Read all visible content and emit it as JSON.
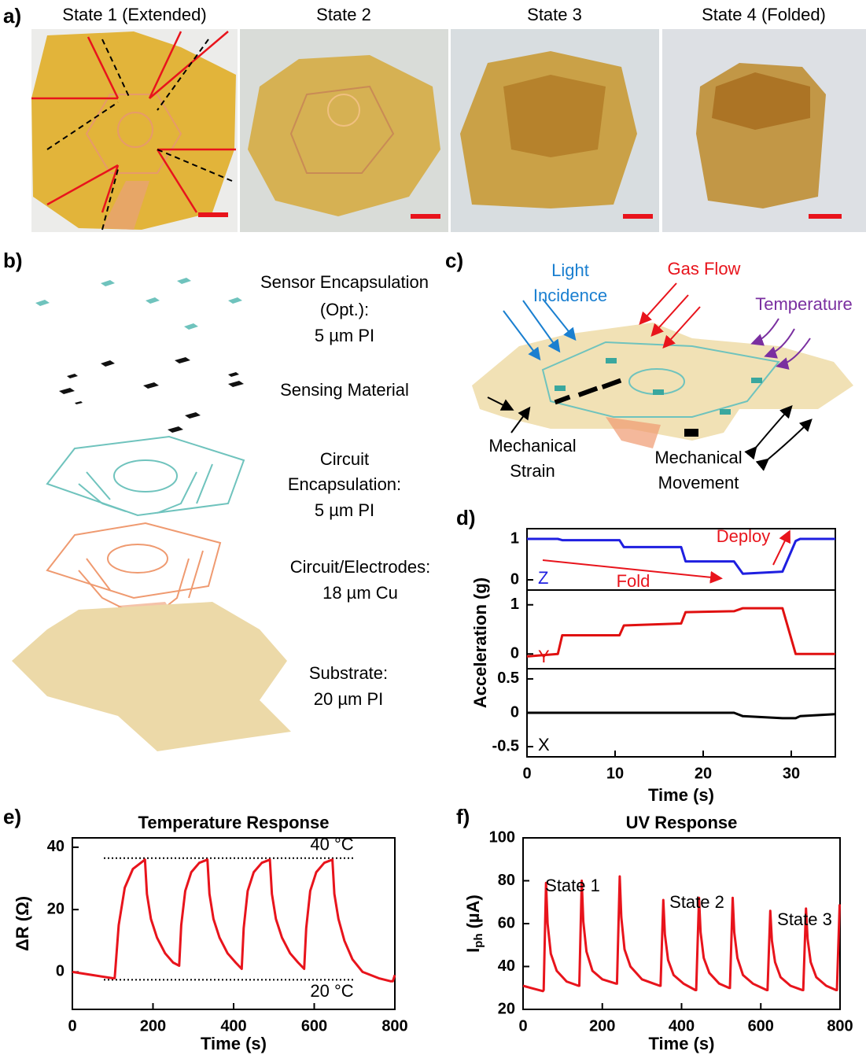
{
  "panel_labels": [
    "a)",
    "b)",
    "c)",
    "d)",
    "e)",
    "f)"
  ],
  "panel_a": {
    "states": [
      "State 1 (Extended)",
      "State 2",
      "State 3",
      "State 4 (Folded)"
    ]
  },
  "panel_b": {
    "layers": [
      [
        "Sensor Encapsulation",
        "(Opt.):",
        "5 µm PI"
      ],
      [
        "Sensing Material"
      ],
      [
        "Circuit",
        "Encapsulation:",
        "5 µm PI"
      ],
      [
        "Circuit/Electrodes:",
        "18 µm Cu"
      ],
      [
        "Substrate:",
        "20 µm PI"
      ]
    ]
  },
  "panel_c": {
    "light": [
      "Light",
      "Incidence"
    ],
    "gas": "Gas Flow",
    "temperature": "Temperature",
    "strain": [
      "Mechanical",
      "Strain"
    ],
    "movement": [
      "Mechanical",
      "Movement"
    ]
  },
  "chart_data": [
    {
      "type": "line",
      "ylabel": "Acceleration (g)",
      "xlabel": "Time (s)",
      "xlim": [
        0,
        35
      ],
      "xticks": [
        0,
        10,
        20,
        30
      ],
      "x": [
        0,
        3.5,
        4,
        10.5,
        11,
        17.5,
        18,
        23.5,
        24.5,
        29,
        30.5,
        31,
        35
      ],
      "series": [
        {
          "name": "Z",
          "color": "#1f1fe0",
          "ylim": [
            -0.25,
            1.25
          ],
          "yticks": [
            0,
            1
          ],
          "values": [
            1.0,
            1.0,
            0.97,
            0.97,
            0.8,
            0.8,
            0.45,
            0.45,
            0.15,
            0.2,
            0.95,
            1.0,
            1.0
          ]
        },
        {
          "name": "Y",
          "color": "#e01010",
          "ylim": [
            -0.3,
            1.3
          ],
          "yticks": [
            0,
            1
          ],
          "values": [
            -0.05,
            0.0,
            0.38,
            0.38,
            0.58,
            0.62,
            0.85,
            0.87,
            0.93,
            0.93,
            0.0,
            0.0,
            0.0
          ]
        },
        {
          "name": "X",
          "color": "#000000",
          "ylim": [
            -0.65,
            0.65
          ],
          "yticks": [
            0.5,
            0,
            -0.5
          ],
          "values": [
            0,
            0,
            0,
            0,
            0,
            0,
            0,
            0,
            -0.05,
            -0.08,
            -0.08,
            -0.05,
            -0.02
          ]
        }
      ],
      "annotations": [
        "Fold",
        "Deploy"
      ]
    },
    {
      "type": "line",
      "title": "Temperature Response",
      "ylabel": "ΔR (Ω)",
      "xlabel": "Time (s)",
      "color": "#e8141c",
      "xlim": [
        0,
        800
      ],
      "xticks": [
        0,
        200,
        400,
        600,
        800
      ],
      "ylim": [
        -12,
        43
      ],
      "yticks": [
        0,
        20,
        40
      ],
      "x": [
        0,
        50,
        100,
        105,
        115,
        130,
        150,
        175,
        180,
        185,
        195,
        210,
        230,
        250,
        265,
        270,
        280,
        295,
        315,
        335,
        340,
        350,
        365,
        385,
        405,
        420,
        425,
        435,
        450,
        470,
        490,
        495,
        505,
        520,
        540,
        560,
        575,
        580,
        590,
        605,
        625,
        645,
        650,
        660,
        675,
        695,
        720,
        760,
        790,
        795,
        800
      ],
      "values": [
        0,
        -1,
        -2,
        -2,
        15,
        27,
        33,
        35.5,
        36,
        25,
        17,
        11,
        6,
        3,
        2,
        15,
        26,
        32,
        35,
        36,
        25,
        17,
        11,
        6,
        3,
        1,
        14,
        26,
        32,
        35,
        36,
        25,
        17,
        11,
        6,
        3,
        1,
        14,
        26,
        32,
        35,
        36,
        25,
        17,
        10,
        4,
        0,
        -2,
        -3,
        -3,
        -1
      ],
      "reference_lines": [
        {
          "value": 36.5,
          "label": "40 °C"
        },
        {
          "value": -2.5,
          "label": "20 °C"
        }
      ]
    },
    {
      "type": "line",
      "title": "UV Response",
      "ylabel": {
        "main": "I",
        "sub": "ph",
        "unit": "(µA)"
      },
      "xlabel": "Time (s)",
      "color": "#e8141c",
      "xlim": [
        0,
        800
      ],
      "xticks": [
        0,
        200,
        400,
        600,
        800
      ],
      "ylim": [
        20,
        100
      ],
      "yticks": [
        20,
        40,
        60,
        80,
        100
      ],
      "x": [
        0,
        20,
        50,
        52,
        58,
        62,
        70,
        85,
        110,
        140,
        142,
        148,
        152,
        160,
        175,
        200,
        235,
        237,
        244,
        248,
        256,
        271,
        300,
        330,
        345,
        347,
        354,
        358,
        366,
        380,
        405,
        435,
        437,
        444,
        448,
        456,
        470,
        495,
        520,
        522,
        529,
        533,
        541,
        555,
        580,
        615,
        617,
        624,
        628,
        636,
        650,
        675,
        705,
        707,
        714,
        718,
        726,
        740,
        765,
        790,
        792,
        799
      ],
      "values": [
        31,
        30,
        28.5,
        29,
        79,
        60,
        46,
        38,
        33,
        31,
        31,
        80,
        61,
        47,
        38,
        34,
        32,
        32,
        82,
        63,
        48,
        40,
        34,
        32,
        31,
        31,
        71,
        55,
        43,
        36,
        32,
        29,
        29,
        72,
        56,
        44,
        37,
        32,
        30,
        30,
        72,
        56,
        44,
        36,
        32,
        29,
        29,
        66,
        52,
        42,
        35,
        31,
        29,
        29,
        67,
        53,
        42,
        35,
        31,
        29,
        29,
        69
      ],
      "annotations": [
        "State 1",
        "State 2",
        "State 3"
      ]
    }
  ]
}
